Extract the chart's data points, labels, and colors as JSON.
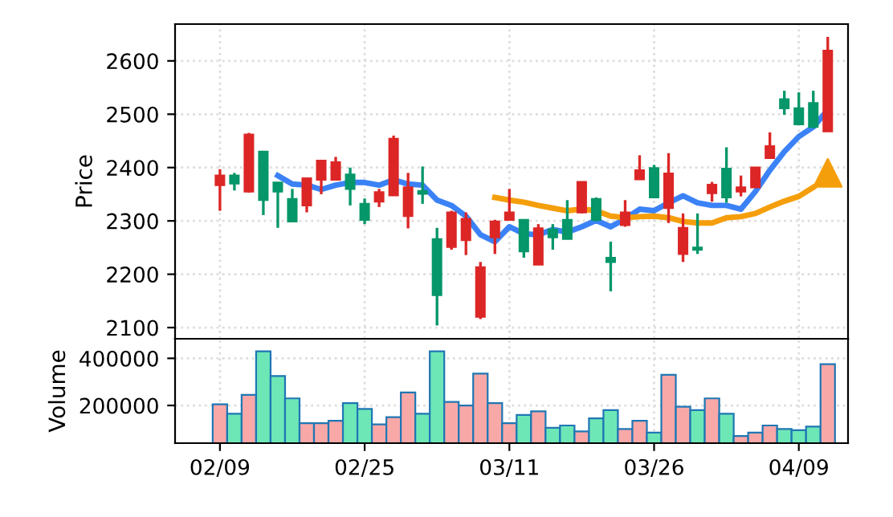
{
  "chart_data": [
    {
      "type": "candlestick",
      "ylabel": "Price",
      "categories": [
        null,
        null,
        null,
        null,
        null,
        null,
        null,
        null,
        null,
        null,
        null,
        null,
        null,
        null,
        null,
        null,
        null,
        null,
        null,
        null,
        null,
        null,
        null,
        null,
        null,
        null,
        null,
        null,
        null,
        null,
        null,
        null,
        null,
        null,
        null,
        null,
        null,
        null,
        null,
        null,
        null,
        null,
        null
      ],
      "ohlc": [
        [
          2367,
          2397,
          2319,
          2385
        ],
        [
          2385,
          2390,
          2357,
          2370
        ],
        [
          2355,
          2465,
          2353,
          2462
        ],
        [
          2430,
          2430,
          2311,
          2339
        ],
        [
          2372,
          2372,
          2287,
          2355
        ],
        [
          2341,
          2360,
          2299,
          2299
        ],
        [
          2329,
          2380,
          2316,
          2380
        ],
        [
          2377,
          2413,
          2350,
          2413
        ],
        [
          2377,
          2420,
          2377,
          2410
        ],
        [
          2387,
          2400,
          2329,
          2360
        ],
        [
          2332,
          2342,
          2294,
          2302
        ],
        [
          2336,
          2360,
          2326,
          2354
        ],
        [
          2348,
          2460,
          2348,
          2454
        ],
        [
          2309,
          2390,
          2286,
          2363
        ],
        [
          2356,
          2402,
          2332,
          2351
        ],
        [
          2266,
          2287,
          2104,
          2161
        ],
        [
          2251,
          2319,
          2246,
          2316
        ],
        [
          2264,
          2316,
          2236,
          2304
        ],
        [
          2120,
          2223,
          2116,
          2213
        ],
        [
          2269,
          2302,
          2238,
          2299
        ],
        [
          2302,
          2360,
          2302,
          2316
        ],
        [
          2302,
          2302,
          2231,
          2243
        ],
        [
          2218,
          2294,
          2218,
          2286
        ],
        [
          2284,
          2294,
          2246,
          2269
        ],
        [
          2302,
          2339,
          2266,
          2266
        ],
        [
          2316,
          2373,
          2314,
          2373
        ],
        [
          2341,
          2344,
          2299,
          2302
        ],
        [
          2231,
          2261,
          2168,
          2223
        ],
        [
          2292,
          2339,
          2289,
          2316
        ],
        [
          2378,
          2423,
          2378,
          2395
        ],
        [
          2399,
          2405,
          2344,
          2344
        ],
        [
          2324,
          2427,
          2296,
          2389
        ],
        [
          2238,
          2314,
          2223,
          2287
        ],
        [
          2250,
          2314,
          2238,
          2246
        ],
        [
          2352,
          2373,
          2336,
          2368
        ],
        [
          2398,
          2438,
          2334,
          2344
        ],
        [
          2355,
          2385,
          2346,
          2363
        ],
        [
          2363,
          2400,
          2363,
          2400
        ],
        [
          2418,
          2466,
          2418,
          2440
        ],
        [
          2528,
          2544,
          2499,
          2511
        ],
        [
          2511,
          2541,
          2481,
          2481
        ],
        [
          2521,
          2544,
          2474,
          2476
        ],
        [
          2468,
          2645,
          2468,
          2619
        ]
      ],
      "colors": [
        "#dc2626",
        "#059669",
        "#dc2626",
        "#059669",
        "#059669",
        "#059669",
        "#dc2626",
        "#dc2626",
        "#dc2626",
        "#059669",
        "#059669",
        "#dc2626",
        "#dc2626",
        "#dc2626",
        "#059669",
        "#059669",
        "#dc2626",
        "#dc2626",
        "#dc2626",
        "#dc2626",
        "#dc2626",
        "#059669",
        "#dc2626",
        "#059669",
        "#059669",
        "#dc2626",
        "#059669",
        "#059669",
        "#dc2626",
        "#dc2626",
        "#059669",
        "#dc2626",
        "#dc2626",
        "#059669",
        "#dc2626",
        "#059669",
        "#dc2626",
        "#dc2626",
        "#dc2626",
        "#059669",
        "#059669",
        "#059669",
        "#dc2626"
      ],
      "series": [
        {
          "type": "line",
          "color": "#3b82f6",
          "values": [
            null,
            null,
            null,
            null,
            2385,
            2369,
            2367,
            2359,
            2367,
            2372,
            2372,
            2367,
            2377,
            2369,
            2367,
            2339,
            2329,
            2309,
            2274,
            2261,
            2289,
            2276,
            2274,
            2284,
            2279,
            2289,
            2301,
            2289,
            2304,
            2322,
            2319,
            2334,
            2347,
            2334,
            2329,
            2329,
            2322,
            2355,
            2395,
            2430,
            2458,
            2476,
            2508
          ]
        },
        {
          "type": "line",
          "color": "#f59e0b",
          "values": [
            null,
            null,
            null,
            null,
            null,
            null,
            null,
            null,
            null,
            null,
            null,
            null,
            null,
            null,
            null,
            null,
            null,
            null,
            null,
            2344,
            2339,
            2335,
            2329,
            2324,
            2319,
            2322,
            2319,
            2309,
            2306,
            2308,
            2309,
            2306,
            2299,
            2296,
            2296,
            2306,
            2308,
            2314,
            2326,
            2337,
            2346,
            2363,
            null
          ]
        },
        {
          "type": "scatter",
          "color": "#f59e0b",
          "marker": "triangle",
          "values": [
            null,
            null,
            null,
            null,
            null,
            null,
            null,
            null,
            null,
            null,
            null,
            null,
            null,
            null,
            null,
            null,
            null,
            null,
            null,
            null,
            null,
            null,
            null,
            null,
            null,
            null,
            null,
            null,
            null,
            null,
            null,
            null,
            null,
            null,
            null,
            null,
            null,
            null,
            null,
            null,
            null,
            null,
            2390
          ]
        }
      ],
      "ylim": [
        2079,
        2669
      ],
      "yticks": [
        2100,
        2200,
        2300,
        2400,
        2500,
        2600
      ],
      "grid": true,
      "tick_labels": "y"
    },
    {
      "type": "bar",
      "ylabel": "Volume",
      "categories": [
        "02/09",
        null,
        null,
        null,
        null,
        null,
        null,
        null,
        null,
        null,
        "02/25",
        null,
        null,
        null,
        null,
        null,
        null,
        null,
        null,
        null,
        "03/11",
        null,
        null,
        null,
        null,
        null,
        null,
        null,
        null,
        null,
        "03/26",
        null,
        null,
        null,
        null,
        null,
        null,
        null,
        null,
        null,
        "04/09",
        null,
        null
      ],
      "values": [
        205000,
        165000,
        245000,
        430000,
        325000,
        230000,
        125000,
        125000,
        135000,
        210000,
        185000,
        120000,
        150000,
        255000,
        165000,
        430000,
        215000,
        200000,
        335000,
        210000,
        125000,
        160000,
        175000,
        105000,
        115000,
        90000,
        145000,
        180000,
        100000,
        135000,
        85000,
        330000,
        195000,
        180000,
        230000,
        165000,
        70000,
        85000,
        115000,
        100000,
        95000,
        110000,
        375000
      ],
      "colors": [
        "#f9a8a8",
        "#6ee7b7",
        "#f9a8a8",
        "#6ee7b7",
        "#6ee7b7",
        "#6ee7b7",
        "#f9a8a8",
        "#f9a8a8",
        "#f9a8a8",
        "#6ee7b7",
        "#6ee7b7",
        "#f9a8a8",
        "#f9a8a8",
        "#f9a8a8",
        "#6ee7b7",
        "#6ee7b7",
        "#f9a8a8",
        "#f9a8a8",
        "#f9a8a8",
        "#f9a8a8",
        "#f9a8a8",
        "#6ee7b7",
        "#f9a8a8",
        "#6ee7b7",
        "#6ee7b7",
        "#f9a8a8",
        "#6ee7b7",
        "#6ee7b7",
        "#f9a8a8",
        "#f9a8a8",
        "#6ee7b7",
        "#f9a8a8",
        "#f9a8a8",
        "#6ee7b7",
        "#f9a8a8",
        "#6ee7b7",
        "#f9a8a8",
        "#f9a8a8",
        "#f9a8a8",
        "#6ee7b7",
        "#6ee7b7",
        "#6ee7b7",
        "#f9a8a8"
      ],
      "ylim": [
        40000,
        483000
      ],
      "yticks": [
        200000,
        400000
      ],
      "grid": true
    }
  ]
}
